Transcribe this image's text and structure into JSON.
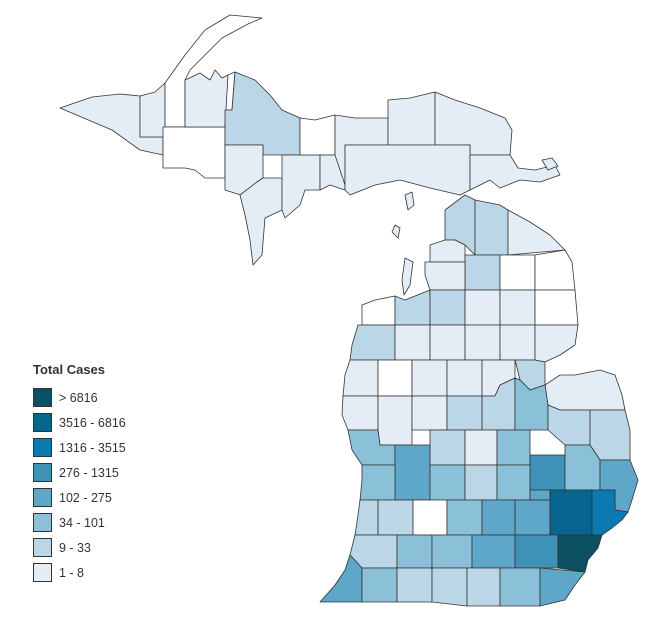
{
  "legend": {
    "title": "Total Cases",
    "bins": [
      {
        "label": "> 6816",
        "color": "#0b4f63"
      },
      {
        "label": "3516 - 6816",
        "color": "#076690"
      },
      {
        "label": "1316 - 3515",
        "color": "#0b7ab0"
      },
      {
        "label": "276 - 1315",
        "color": "#3e92b8"
      },
      {
        "label": "102 - 275",
        "color": "#5ea7c8"
      },
      {
        "label": "34 - 101",
        "color": "#8ac0d8"
      },
      {
        "label": "9 - 33",
        "color": "#bbd6e7"
      },
      {
        "label": "1 - 8",
        "color": "#e4edf5"
      }
    ]
  },
  "extra_colors": {
    "zero": "#ffffff",
    "border": "#333333"
  },
  "counties": [
    {
      "id": "up-w1",
      "bin": 7
    },
    {
      "id": "up-w2",
      "bin": 7
    },
    {
      "id": "up-w3",
      "bin": 8
    },
    {
      "id": "up-w4",
      "bin": 8
    },
    {
      "id": "up-w5",
      "bin": 7
    },
    {
      "id": "up-w6",
      "bin": 8
    },
    {
      "id": "up-marquette",
      "bin": 6
    },
    {
      "id": "up-c1",
      "bin": 7
    },
    {
      "id": "up-c2",
      "bin": 7
    },
    {
      "id": "up-c3",
      "bin": 7
    },
    {
      "id": "up-alger",
      "bin": 8
    },
    {
      "id": "up-c4",
      "bin": 7
    },
    {
      "id": "up-e1",
      "bin": 7
    },
    {
      "id": "up-e2",
      "bin": 7
    },
    {
      "id": "up-e3",
      "bin": 7
    },
    {
      "id": "up-e4",
      "bin": 7
    },
    {
      "id": "up-e5",
      "bin": 7
    },
    {
      "id": "lp-r1a",
      "bin": 6
    },
    {
      "id": "lp-r1b",
      "bin": 6
    },
    {
      "id": "lp-r1c",
      "bin": 7
    },
    {
      "id": "lp-r2a",
      "bin": 7
    },
    {
      "id": "lp-r2b",
      "bin": 6
    },
    {
      "id": "lp-r2c",
      "bin": 8
    },
    {
      "id": "lp-r2d",
      "bin": 8
    },
    {
      "id": "lp-r2e",
      "bin": 7
    },
    {
      "id": "lp-r3a",
      "bin": 8
    },
    {
      "id": "lp-r3b",
      "bin": 6
    },
    {
      "id": "lp-r3c",
      "bin": 6
    },
    {
      "id": "lp-r3d",
      "bin": 7
    },
    {
      "id": "lp-r3e",
      "bin": 7
    },
    {
      "id": "lp-r3f",
      "bin": 8
    },
    {
      "id": "lp-r4a",
      "bin": 6
    },
    {
      "id": "lp-r4b",
      "bin": 7
    },
    {
      "id": "lp-r4c",
      "bin": 7
    },
    {
      "id": "lp-r4d",
      "bin": 7
    },
    {
      "id": "lp-r4e",
      "bin": 7
    },
    {
      "id": "lp-r4f",
      "bin": 7
    },
    {
      "id": "lp-r5a",
      "bin": 7
    },
    {
      "id": "lp-r5b",
      "bin": 8
    },
    {
      "id": "lp-r5c",
      "bin": 7
    },
    {
      "id": "lp-r5d",
      "bin": 7
    },
    {
      "id": "lp-r5e",
      "bin": 7
    },
    {
      "id": "lp-r5f",
      "bin": 6
    },
    {
      "id": "lp-r5g",
      "bin": 7
    },
    {
      "id": "lp-r6a",
      "bin": 7
    },
    {
      "id": "lp-r6b",
      "bin": 7
    },
    {
      "id": "lp-r6c",
      "bin": 7
    },
    {
      "id": "lp-r6d",
      "bin": 6
    },
    {
      "id": "lp-r6e",
      "bin": 6
    },
    {
      "id": "lp-r6f",
      "bin": 5
    },
    {
      "id": "lp-r6g",
      "bin": 6
    },
    {
      "id": "lp-r6h",
      "bin": 6
    },
    {
      "id": "lp-r7a",
      "bin": 5
    },
    {
      "id": "lp-r7b",
      "bin": 4
    },
    {
      "id": "lp-r7c",
      "bin": 6
    },
    {
      "id": "lp-r7d",
      "bin": 7
    },
    {
      "id": "lp-r7e",
      "bin": 5
    },
    {
      "id": "lp-r7f",
      "bin": 3
    },
    {
      "id": "lp-r7g",
      "bin": 5
    },
    {
      "id": "lp-r7h",
      "bin": 4
    },
    {
      "id": "lp-r8a",
      "bin": 5
    },
    {
      "id": "lp-r8b",
      "bin": 5
    },
    {
      "id": "lp-r8c",
      "bin": 6
    },
    {
      "id": "lp-r8d",
      "bin": 5
    },
    {
      "id": "lp-r8e",
      "bin": 4
    },
    {
      "id": "lp-r8f",
      "bin": 4
    },
    {
      "id": "lp-oakland",
      "bin": 1
    },
    {
      "id": "lp-macomb",
      "bin": 2
    },
    {
      "id": "lp-r9a",
      "bin": 6
    },
    {
      "id": "lp-r9b",
      "bin": 6
    },
    {
      "id": "lp-r9c",
      "bin": 8
    },
    {
      "id": "lp-r9d",
      "bin": 5
    },
    {
      "id": "lp-r9e",
      "bin": 4
    },
    {
      "id": "lp-r9f",
      "bin": 5
    },
    {
      "id": "lp-r10a",
      "bin": 6
    },
    {
      "id": "lp-r10b",
      "bin": 5
    },
    {
      "id": "lp-r10c",
      "bin": 5
    },
    {
      "id": "lp-r10d",
      "bin": 4
    },
    {
      "id": "lp-r10e",
      "bin": 3
    },
    {
      "id": "lp-wayne",
      "bin": 0
    },
    {
      "id": "lp-r11a",
      "bin": 5
    },
    {
      "id": "lp-r11b",
      "bin": 6
    },
    {
      "id": "lp-r11c",
      "bin": 6
    },
    {
      "id": "lp-r11d",
      "bin": 6
    },
    {
      "id": "lp-r11e",
      "bin": 5
    },
    {
      "id": "lp-r11f",
      "bin": 5
    },
    {
      "id": "lp-monroe",
      "bin": 4
    },
    {
      "id": "lp-berrien",
      "bin": 4
    }
  ]
}
